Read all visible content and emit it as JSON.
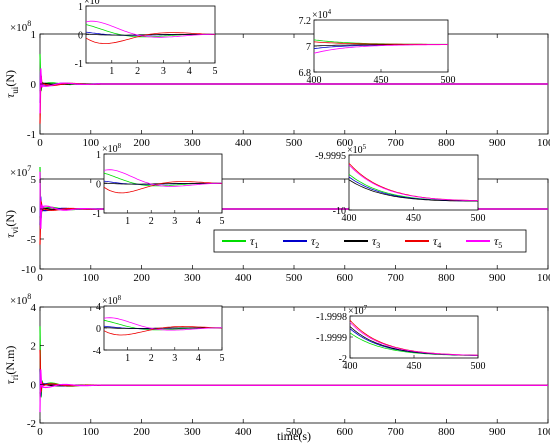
{
  "figure": {
    "xlabel": "time(s)",
    "legend": [
      {
        "label": "τ",
        "sub": "1",
        "color": "#00dd00"
      },
      {
        "label": "τ",
        "sub": "2",
        "color": "#0000cc"
      },
      {
        "label": "τ",
        "sub": "3",
        "color": "#000000"
      },
      {
        "label": "τ",
        "sub": "4",
        "color": "#ee0000"
      },
      {
        "label": "τ",
        "sub": "5",
        "color": "#ff00ff"
      }
    ]
  },
  "chart_data": [
    {
      "type": "line",
      "ylabel_sym": "τ",
      "ylabel_sub": "ui",
      "ylabel_unit": "(N)",
      "exponent": "8",
      "xlim": [
        0,
        1000
      ],
      "ylim": [
        -1,
        1
      ],
      "yticks": [
        "-1",
        "0",
        "1"
      ],
      "xticks": [
        "0",
        "100",
        "200",
        "300",
        "400",
        "500",
        "600",
        "700",
        "800",
        "900",
        "1000"
      ],
      "series_note": "all five signals settle to ≈0 after a transient in first ~100 s",
      "inset1": {
        "exponent": "8",
        "xlim": [
          0,
          5
        ],
        "ylim": [
          -1,
          1
        ],
        "xticks": [
          "1",
          "2",
          "3",
          "4",
          "5"
        ],
        "yticks": [
          "-1",
          "0",
          "1"
        ]
      },
      "inset2": {
        "exponent": "4",
        "xlim": [
          400,
          500
        ],
        "ylim": [
          6.8,
          7.2
        ],
        "xticks": [
          "400",
          "450",
          "500"
        ],
        "yticks": [
          "6.8",
          "7",
          "7.2"
        ]
      }
    },
    {
      "type": "line",
      "ylabel_sym": "τ",
      "ylabel_sub": "vi",
      "ylabel_unit": "(N)",
      "exponent": "7",
      "xlim": [
        0,
        1000
      ],
      "ylim": [
        -10,
        5
      ],
      "yticks": [
        "-10",
        "-5",
        "0",
        "5"
      ],
      "xticks": [
        "0",
        "100",
        "200",
        "300",
        "400",
        "500",
        "600",
        "700",
        "800",
        "900",
        "1000"
      ],
      "inset1": {
        "exponent": "8",
        "xlim": [
          0,
          5
        ],
        "ylim": [
          -1,
          1
        ],
        "xticks": [
          "1",
          "2",
          "3",
          "4",
          "5"
        ],
        "yticks": [
          "-1",
          "0",
          "1"
        ]
      },
      "inset2": {
        "exponent": "5",
        "xlim": [
          400,
          500
        ],
        "ylim": [
          -10,
          -9.9995
        ],
        "xticks": [
          "400",
          "450",
          "500"
        ],
        "yticks": [
          "-10",
          "-9.9995"
        ]
      }
    },
    {
      "type": "line",
      "ylabel_sym": "τ",
      "ylabel_sub": "ri",
      "ylabel_unit": "(N.m)",
      "exponent": "8",
      "xlim": [
        0,
        1000
      ],
      "ylim": [
        -2,
        4
      ],
      "yticks": [
        "-2",
        "0",
        "2",
        "4"
      ],
      "xticks": [
        "0",
        "100",
        "200",
        "300",
        "400",
        "500",
        "600",
        "700",
        "800",
        "900",
        "1000"
      ],
      "inset1": {
        "exponent": "8",
        "xlim": [
          0,
          5
        ],
        "ylim": [
          -4,
          4
        ],
        "xticks": [
          "1",
          "2",
          "3",
          "4",
          "5"
        ],
        "yticks": [
          "-4",
          "0",
          "4"
        ]
      },
      "inset2": {
        "exponent": "7",
        "xlim": [
          400,
          500
        ],
        "ylim": [
          -2,
          -1.9998
        ],
        "xticks": [
          "400",
          "450",
          "500"
        ],
        "yticks": [
          "-2",
          "-1.9999",
          "-1.9998"
        ]
      }
    }
  ]
}
